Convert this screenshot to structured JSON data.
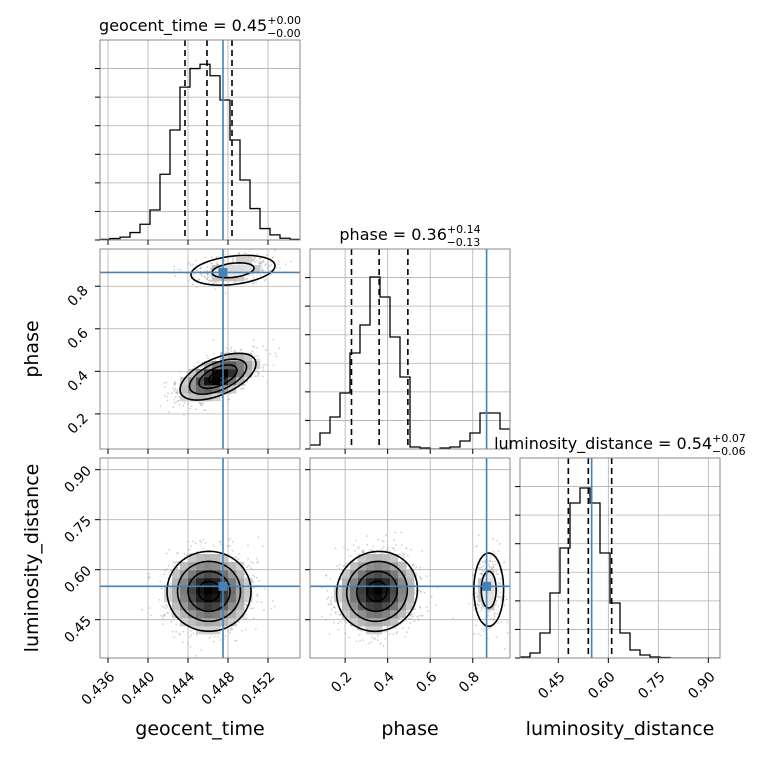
{
  "chart_data": {
    "type": "corner",
    "parameters": [
      "geocent_time",
      "phase",
      "luminosity_distance"
    ],
    "truth": {
      "geocent_time": 0.4475,
      "phase": 0.865,
      "luminosity_distance": 0.55
    },
    "ranges": {
      "geocent_time": [
        0.4352,
        0.4552
      ],
      "phase": [
        0.035,
        0.975
      ],
      "luminosity_distance": [
        0.335,
        0.935
      ]
    },
    "ticks": {
      "geocent_time": [
        "0.436",
        "0.440",
        "0.444",
        "0.448",
        "0.452"
      ],
      "phase": [
        "0.2",
        "0.4",
        "0.6",
        "0.8"
      ],
      "luminosity_distance": [
        "0.45",
        "0.60",
        "0.75",
        "0.90"
      ]
    },
    "axis_labels": {
      "geocent_time": "geocent_time",
      "phase": "phase",
      "luminosity_distance": "luminosity_distance"
    },
    "titles": {
      "geocent_time": {
        "name": "geocent_time",
        "value": "0.45",
        "plus": "+0.00",
        "minus": "−0.00"
      },
      "phase": {
        "name": "phase",
        "value": "0.36",
        "plus": "+0.14",
        "minus": "−0.13"
      },
      "luminosity_distance": {
        "name": "luminosity_distance",
        "value": "0.54",
        "plus": "+0.07",
        "minus": "−0.06"
      }
    },
    "quantiles": {
      "geocent_time": [
        0.4437,
        0.4459,
        0.4484
      ],
      "phase": [
        0.23,
        0.36,
        0.495
      ],
      "luminosity_distance": [
        0.48,
        0.54,
        0.61
      ]
    },
    "histograms": {
      "geocent_time": {
        "edges": [
          0.4352,
          0.4362,
          0.4372,
          0.4382,
          0.4392,
          0.4402,
          0.4412,
          0.4422,
          0.4432,
          0.4442,
          0.4452,
          0.4462,
          0.4472,
          0.4482,
          0.4492,
          0.4502,
          0.4512,
          0.4522,
          0.4532,
          0.4542,
          0.4552
        ],
        "counts": [
          0.2,
          0.5,
          1.0,
          2.6,
          5.5,
          10.5,
          23.0,
          38.5,
          53.5,
          60.0,
          61.5,
          57.5,
          49.0,
          35.0,
          21.0,
          11.0,
          4.0,
          1.8,
          0.6,
          0.2
        ],
        "ymax": 70
      },
      "phase": {
        "edges": [
          0.035,
          0.082,
          0.129,
          0.176,
          0.223,
          0.27,
          0.317,
          0.364,
          0.411,
          0.458,
          0.505,
          0.552,
          0.599,
          0.646,
          0.693,
          0.74,
          0.787,
          0.834,
          0.881,
          0.928,
          0.975
        ],
        "counts": [
          0.2,
          0.8,
          1.6,
          2.8,
          4.8,
          6.2,
          8.6,
          7.6,
          5.6,
          3.6,
          0.1,
          0.05,
          0,
          0.05,
          0.1,
          0.4,
          0.8,
          1.8,
          1.8,
          1.0
        ],
        "ymax": 10
      },
      "luminosity_distance": {
        "edges": [
          0.335,
          0.365,
          0.395,
          0.425,
          0.455,
          0.485,
          0.515,
          0.545,
          0.575,
          0.605,
          0.635,
          0.665,
          0.695,
          0.725,
          0.755,
          0.785,
          0.815,
          0.845,
          0.875,
          0.905,
          0.935
        ],
        "counts": [
          0.1,
          0.5,
          2.5,
          6.5,
          11.0,
          15.5,
          17.0,
          15.5,
          10.5,
          5.5,
          2.5,
          0.8,
          0.3,
          0.1,
          0.05,
          0,
          0,
          0,
          0,
          0
        ],
        "ymax": 20
      }
    },
    "pairs": [
      {
        "x": "geocent_time",
        "y": "phase",
        "modes": [
          {
            "cx": 0.447,
            "cy": 0.375,
            "sx": 0.0019,
            "sy": 0.055,
            "rho": 0.55,
            "n": 2100
          },
          {
            "cx": 0.4485,
            "cy": 0.875,
            "sx": 0.0021,
            "sy": 0.035,
            "rho": 0.3,
            "n": 650
          }
        ]
      },
      {
        "x": "geocent_time",
        "y": "luminosity_distance",
        "modes": [
          {
            "cx": 0.4461,
            "cy": 0.535,
            "sx": 0.0021,
            "sy": 0.06,
            "rho": 0.0,
            "n": 2400
          }
        ]
      },
      {
        "x": "phase",
        "y": "luminosity_distance",
        "modes": [
          {
            "cx": 0.35,
            "cy": 0.535,
            "sx": 0.095,
            "sy": 0.06,
            "rho": 0.05,
            "n": 2000
          },
          {
            "cx": 0.875,
            "cy": 0.54,
            "sx": 0.035,
            "sy": 0.055,
            "rho": 0.0,
            "n": 550
          }
        ]
      }
    ],
    "grid": true,
    "colors": {
      "truth": "#4682b4",
      "contour": "#000000",
      "hist": "#000000",
      "points": "#9a9a9a"
    }
  }
}
